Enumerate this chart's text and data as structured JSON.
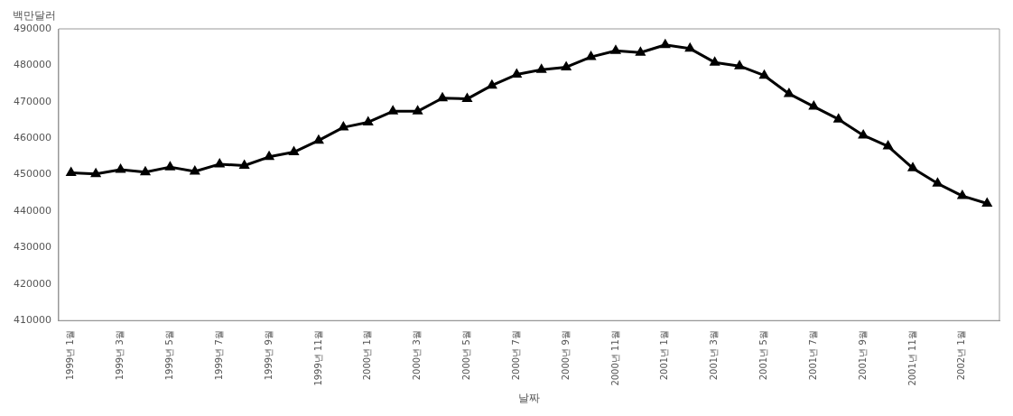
{
  "chart_data": {
    "type": "line",
    "ylabel": "백만달러",
    "xlabel": "날짜",
    "categories": [
      "1999년 1월",
      null,
      "1999년 3월",
      null,
      "1999년 5월",
      null,
      "1999년 7월",
      null,
      "1999년 9월",
      null,
      "1999년 11월",
      null,
      "2000년 1월",
      null,
      "2000년 3월",
      null,
      "2000년 5월",
      null,
      "2000년 7월",
      null,
      "2000년 9월",
      null,
      "2000년 11월",
      null,
      "2001년 1월",
      null,
      "2001년 3월",
      null,
      "2001년 5월",
      null,
      "2001년 7월",
      null,
      "2001년 9월",
      null,
      "2001년 11월",
      null,
      "2002년 1월",
      null
    ],
    "series": [
      {
        "color": "#000000",
        "values": [
          450500,
          450200,
          451400,
          450700,
          452100,
          450900,
          452900,
          452500,
          454900,
          456200,
          459400,
          463000,
          464400,
          467400,
          467400,
          471000,
          470800,
          474500,
          477500,
          478800,
          479500,
          482300,
          484000,
          483500,
          485600,
          484600,
          480800,
          479800,
          477200,
          472200,
          468700,
          465200,
          460800,
          457800,
          451800,
          447600,
          444200,
          442100
        ]
      }
    ],
    "ylim": [
      410000,
      490000
    ],
    "yticks": [
      410000,
      420000,
      430000,
      440000,
      450000,
      460000,
      470000,
      480000,
      490000
    ],
    "grid": false,
    "legend": false,
    "marker": "triangle",
    "line_style": "solid"
  }
}
